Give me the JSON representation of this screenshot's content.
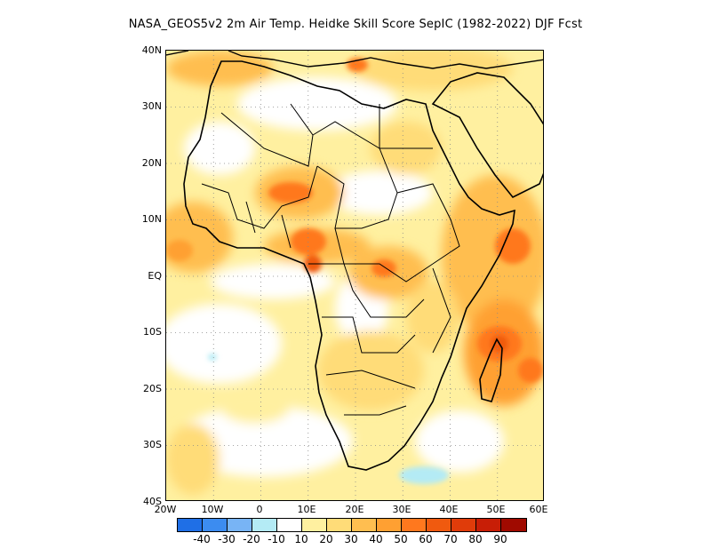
{
  "title": "NASA_GEOS5v2  2m Air Temp. Heidke Skill Score SepIC (1982-2022) DJF Fcst",
  "map": {
    "region": "Africa",
    "extent": {
      "lon": [
        -20,
        60
      ],
      "lat": [
        -40,
        40
      ]
    },
    "lat_ticks": [
      "40N",
      "30N",
      "20N",
      "10N",
      "EQ",
      "10S",
      "20S",
      "30S",
      "40S"
    ],
    "lon_ticks": [
      "20W",
      "10W",
      "0",
      "10E",
      "20E",
      "30E",
      "40E",
      "50E",
      "60E"
    ],
    "gridlines": "dotted"
  },
  "colorbar": {
    "colors": [
      "#1f6fe6",
      "#3c8cf0",
      "#78b4f5",
      "#b4ebf5",
      "#ffffff",
      "#fff0a0",
      "#ffdc78",
      "#ffbe50",
      "#ffa032",
      "#ff781e",
      "#f05a0f",
      "#e03c0a",
      "#c81e06",
      "#a00a00"
    ],
    "labels": [
      "-40",
      "-30",
      "-20",
      "-10",
      "10",
      "20",
      "30",
      "40",
      "50",
      "60",
      "70",
      "80",
      "90"
    ]
  }
}
